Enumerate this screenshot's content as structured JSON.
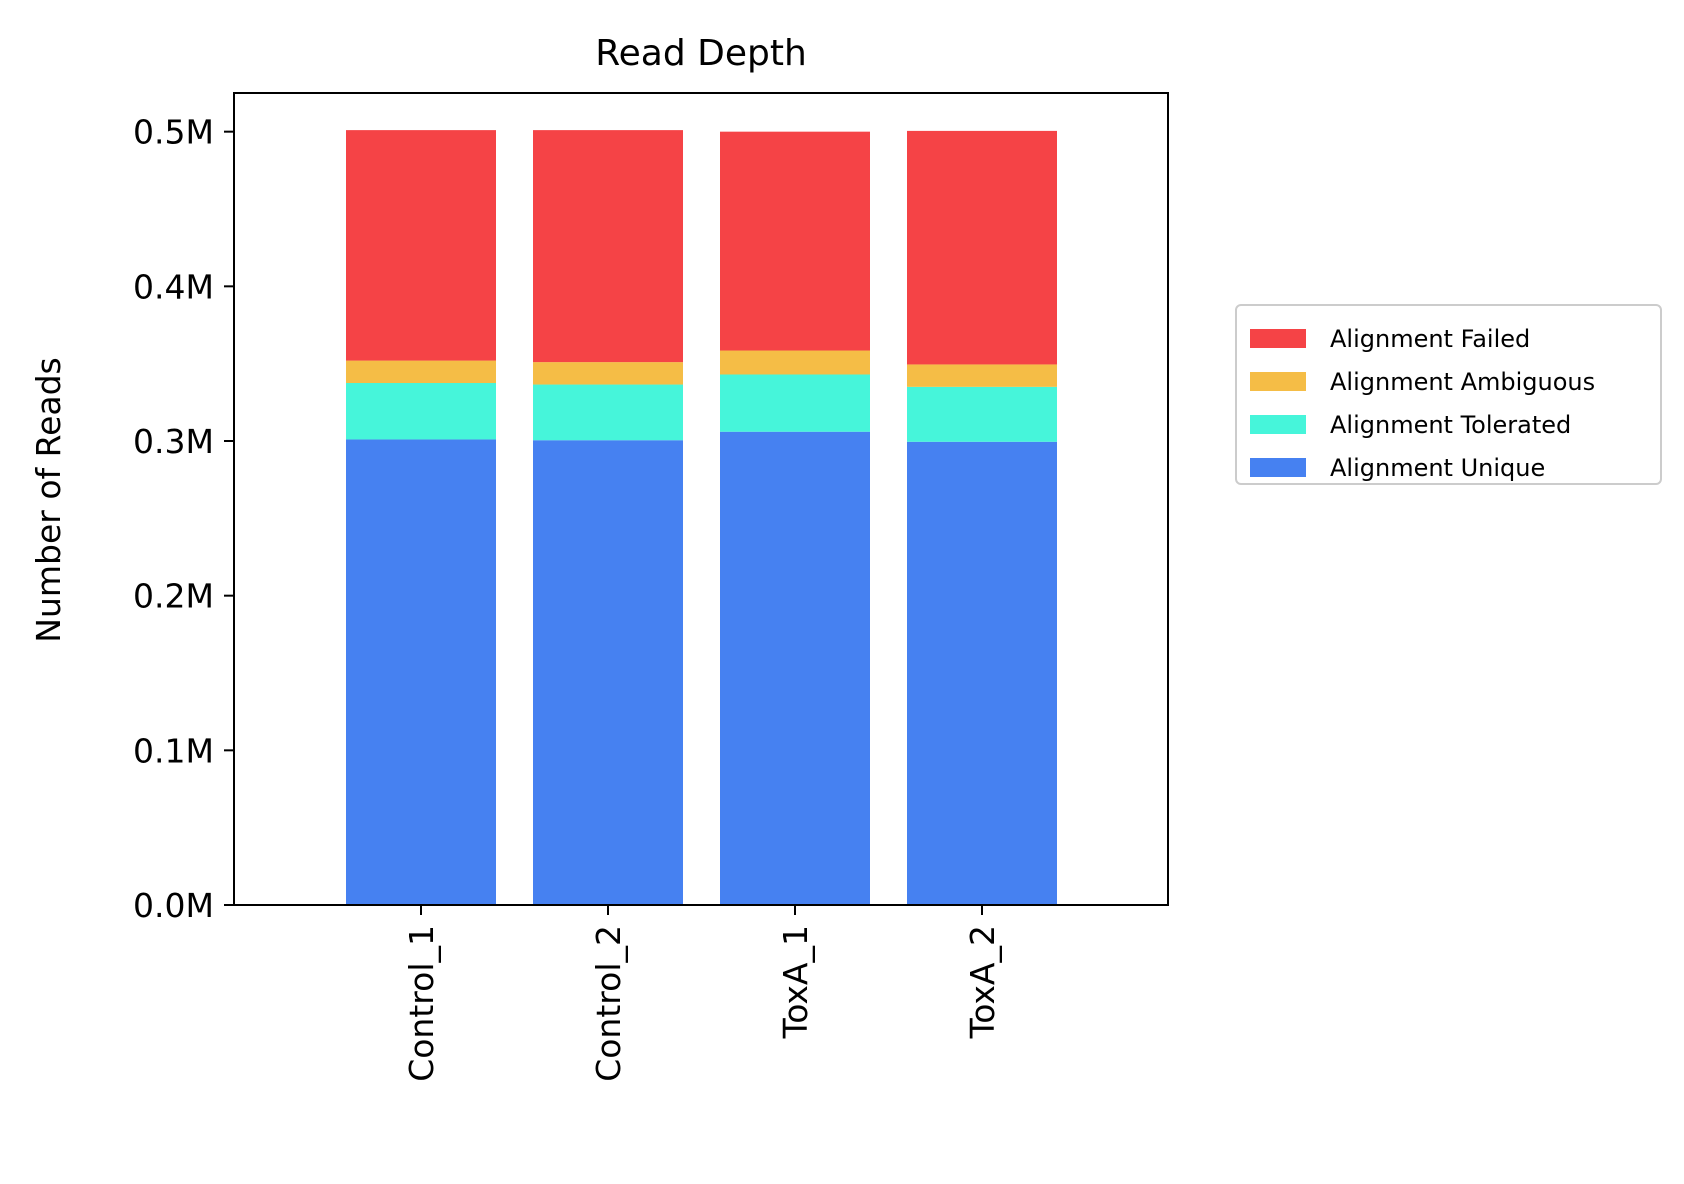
{
  "chart_data": {
    "type": "bar",
    "stacked": true,
    "title": "Read Depth",
    "xlabel": "",
    "ylabel": "Number of Reads",
    "categories": [
      "Control_1",
      "Control_2",
      "ToxA_1",
      "ToxA_2"
    ],
    "series": [
      {
        "name": "Alignment Unique",
        "color": "#4681f1",
        "values": [
          301000,
          300500,
          306000,
          299500
        ]
      },
      {
        "name": "Alignment Tolerated",
        "color": "#46f5da",
        "values": [
          36500,
          36000,
          37000,
          35500
        ]
      },
      {
        "name": "Alignment Ambiguous",
        "color": "#f5bd46",
        "values": [
          14500,
          14500,
          15500,
          14500
        ]
      },
      {
        "name": "Alignment Failed",
        "color": "#f54346",
        "values": [
          149000,
          150000,
          141500,
          151000
        ]
      }
    ],
    "ylim": [
      0,
      525000
    ],
    "yticks": [
      0,
      100000,
      200000,
      300000,
      400000,
      500000
    ],
    "ytick_labels": [
      "0.0M",
      "0.1M",
      "0.2M",
      "0.3M",
      "0.4M",
      "0.5M"
    ],
    "grid": false,
    "legend": {
      "placement": "right, outside plot, vertically centered",
      "order": [
        "Alignment Failed",
        "Alignment Ambiguous",
        "Alignment Tolerated",
        "Alignment Unique"
      ]
    }
  }
}
